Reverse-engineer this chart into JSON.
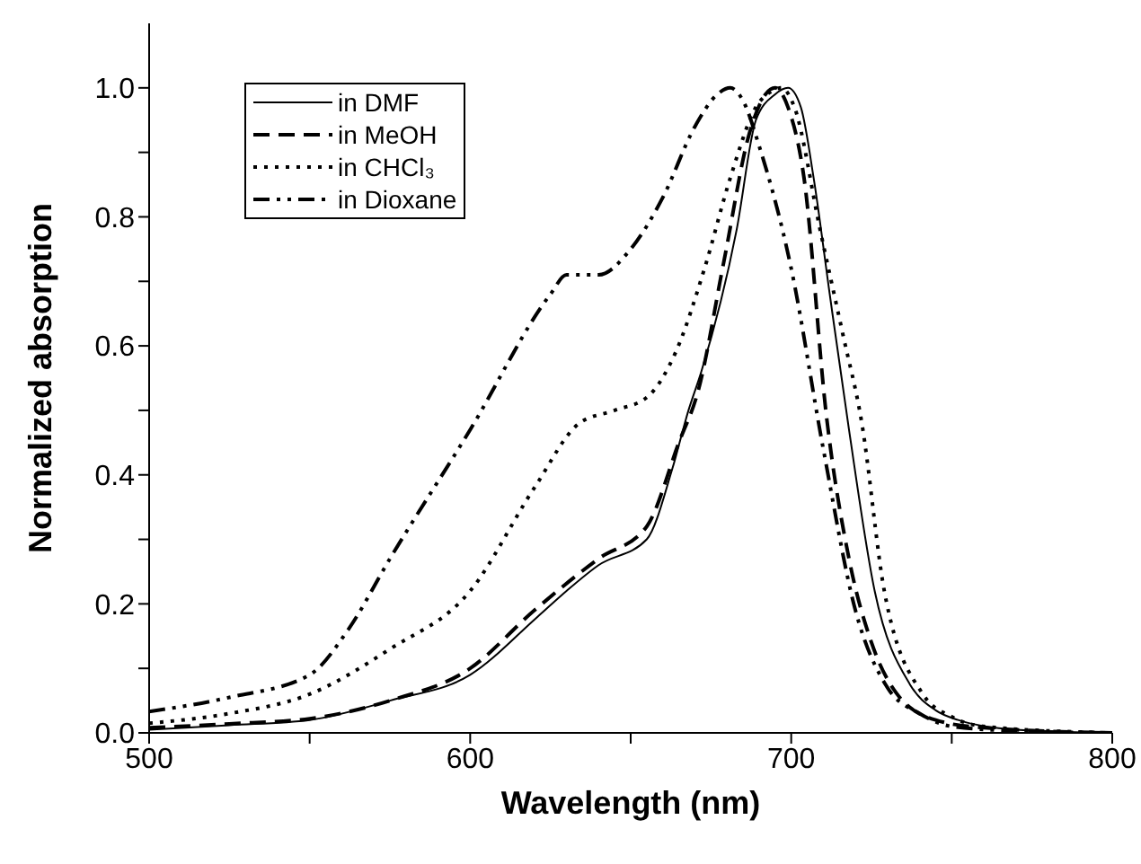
{
  "chart_data": {
    "type": "line",
    "xlabel": "Wavelength (nm)",
    "ylabel": "Normalized absorption",
    "xlim": [
      500,
      800
    ],
    "xticks": [
      500,
      {
        "value": 550,
        "label": null
      },
      600,
      {
        "value": 650,
        "label": null
      },
      700,
      {
        "value": 750,
        "label": null
      },
      800
    ],
    "ylim": [
      0,
      1.1
    ],
    "yticks": [
      {
        "value": 0.0,
        "label": "0.0"
      },
      {
        "value": 0.1,
        "label": null
      },
      {
        "value": 0.2,
        "label": "0.2"
      },
      {
        "value": 0.3,
        "label": null
      },
      {
        "value": 0.4,
        "label": "0.4"
      },
      {
        "value": 0.5,
        "label": null
      },
      {
        "value": 0.6,
        "label": "0.6"
      },
      {
        "value": 0.7,
        "label": null
      },
      {
        "value": 0.8,
        "label": "0.8"
      },
      {
        "value": 0.9,
        "label": null
      },
      {
        "value": 1.0,
        "label": "1.0"
      }
    ],
    "grid": false,
    "legend": "top left",
    "marker": "none",
    "series": [
      {
        "name": "in DMF",
        "color": "#000000",
        "line_style": "solid",
        "x": [
          500,
          525,
          550,
          575,
          600,
          621,
          630,
          640,
          655,
          663,
          668,
          672,
          683,
          689,
          695,
          699,
          703,
          707,
          712,
          718,
          726,
          737,
          745,
          752,
          770,
          800
        ],
        "values": [
          0.005,
          0.012,
          0.02,
          0.05,
          0.09,
          0.18,
          0.22,
          0.26,
          0.3,
          0.41,
          0.5,
          0.56,
          0.78,
          0.95,
          0.99,
          1.0,
          0.97,
          0.86,
          0.68,
          0.47,
          0.22,
          0.075,
          0.035,
          0.02,
          0.005,
          0.0
        ]
      },
      {
        "name": "in MeOH",
        "color": "#000000",
        "line_style": "dashed",
        "x": [
          500,
          525,
          550,
          575,
          600,
          620,
          640,
          655,
          665,
          671,
          679,
          687,
          692,
          695,
          699,
          704,
          711,
          718,
          725,
          733,
          745,
          760,
          800
        ],
        "values": [
          0.008,
          0.014,
          0.022,
          0.05,
          0.1,
          0.19,
          0.27,
          0.32,
          0.45,
          0.53,
          0.73,
          0.93,
          0.99,
          1.0,
          0.97,
          0.86,
          0.49,
          0.27,
          0.14,
          0.06,
          0.02,
          0.008,
          0.0
        ]
      },
      {
        "name": "in CHCl₃",
        "color": "#000000",
        "line_style": "dotted",
        "x": [
          500,
          525,
          550,
          575,
          600,
          620,
          634,
          645,
          655,
          664,
          673,
          681,
          689,
          694,
          697,
          701,
          709,
          716,
          722,
          729,
          741,
          750,
          760,
          800
        ],
        "values": [
          0.015,
          0.03,
          0.06,
          0.13,
          0.22,
          0.38,
          0.48,
          0.5,
          0.52,
          0.59,
          0.72,
          0.86,
          0.97,
          0.995,
          1.0,
          0.97,
          0.78,
          0.62,
          0.48,
          0.22,
          0.06,
          0.025,
          0.01,
          0.0
        ]
      },
      {
        "name": "in Dioxane",
        "color": "#000000",
        "line_style": "dashdot",
        "x": [
          500,
          525,
          550,
          562,
          575,
          600,
          625,
          630,
          640,
          650,
          660,
          670,
          677,
          681,
          685,
          690,
          700,
          710,
          720,
          730,
          740,
          750,
          770,
          800
        ],
        "values": [
          0.033,
          0.055,
          0.09,
          0.16,
          0.27,
          0.47,
          0.68,
          0.71,
          0.71,
          0.75,
          0.83,
          0.94,
          0.99,
          1.0,
          0.98,
          0.91,
          0.72,
          0.44,
          0.19,
          0.07,
          0.03,
          0.01,
          0.003,
          0.0
        ]
      }
    ]
  }
}
